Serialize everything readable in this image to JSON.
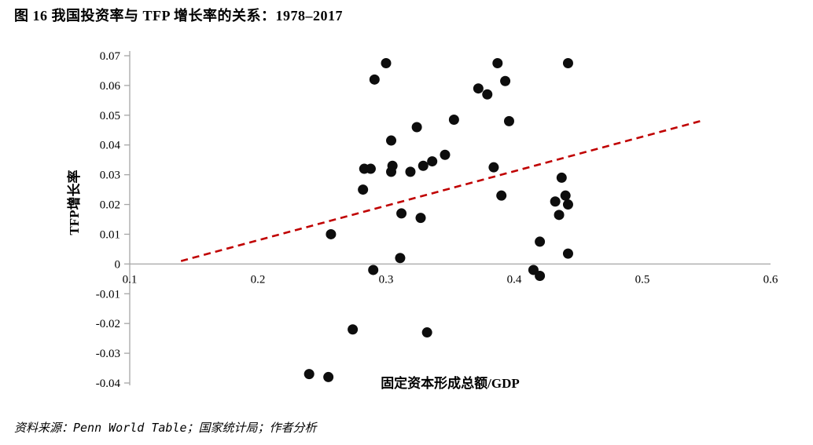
{
  "title": "图 16 我国投资率与 TFP 增长率的关系：1978–2017",
  "source": "资料来源：Penn World Table；国家统计局；作者分析",
  "chart_data": {
    "type": "scatter",
    "title": "图 16 我国投资率与 TFP 增长率的关系：1978–2017",
    "xlabel": "固定资本形成总额/GDP",
    "ylabel": "TFP增长率",
    "xlim": [
      0.1,
      0.6
    ],
    "ylim": [
      -0.04,
      0.07
    ],
    "grid": false,
    "legend_position": "none",
    "xticks": [
      0.1,
      0.2,
      0.3,
      0.4,
      0.5,
      0.6
    ],
    "xtick_labels": [
      "0.1",
      "0.2",
      "0.3",
      "0.4",
      "0.5",
      "0.6"
    ],
    "yticks": [
      0.07,
      0.06,
      0.05,
      0.04,
      0.03,
      0.02,
      0.01,
      0,
      -0.01,
      -0.02,
      -0.03,
      -0.04
    ],
    "ytick_labels": [
      "0.07",
      "0.06",
      "0.05",
      "0.04",
      "0.03",
      "0.02",
      "0.01",
      "0",
      "-0.01",
      "-0.02",
      "-0.03",
      "-0.04"
    ],
    "point_color": "#0d0d0d",
    "axis_color": "#a6a6a6",
    "trendline": {
      "style": "dashed",
      "color": "#c00000",
      "x": [
        0.14,
        0.545
      ],
      "y": [
        0.001,
        0.048
      ]
    },
    "points": [
      [
        0.24,
        -0.037
      ],
      [
        0.255,
        -0.038
      ],
      [
        0.257,
        0.01
      ],
      [
        0.274,
        -0.022
      ],
      [
        0.282,
        0.025
      ],
      [
        0.283,
        0.032
      ],
      [
        0.288,
        0.032
      ],
      [
        0.29,
        -0.002
      ],
      [
        0.291,
        0.062
      ],
      [
        0.3,
        0.0675
      ],
      [
        0.304,
        0.0415
      ],
      [
        0.304,
        0.031
      ],
      [
        0.305,
        0.033
      ],
      [
        0.311,
        0.002
      ],
      [
        0.312,
        0.017
      ],
      [
        0.319,
        0.031
      ],
      [
        0.324,
        0.046
      ],
      [
        0.327,
        0.0155
      ],
      [
        0.329,
        0.033
      ],
      [
        0.332,
        -0.023
      ],
      [
        0.336,
        0.0345
      ],
      [
        0.346,
        0.0367
      ],
      [
        0.353,
        0.0485
      ],
      [
        0.372,
        0.059
      ],
      [
        0.379,
        0.057
      ],
      [
        0.384,
        0.0325
      ],
      [
        0.387,
        0.0675
      ],
      [
        0.39,
        0.023
      ],
      [
        0.393,
        0.0615
      ],
      [
        0.396,
        0.048
      ],
      [
        0.415,
        -0.002
      ],
      [
        0.42,
        0.0075
      ],
      [
        0.42,
        -0.004
      ],
      [
        0.432,
        0.021
      ],
      [
        0.435,
        0.0165
      ],
      [
        0.437,
        0.029
      ],
      [
        0.44,
        0.023
      ],
      [
        0.442,
        0.0675
      ],
      [
        0.442,
        0.02
      ],
      [
        0.442,
        0.0035
      ]
    ]
  }
}
